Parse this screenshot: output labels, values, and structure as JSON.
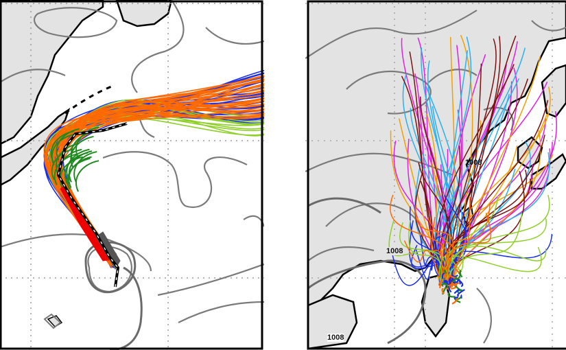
{
  "figure": {
    "panels": [
      {
        "id": "left",
        "contour_labels": []
      },
      {
        "id": "right",
        "contour_labels": [
          "1008",
          "1008",
          "1008"
        ]
      }
    ]
  },
  "colors": {
    "land_fill": "#e3e3e3",
    "ocean_fill": "#ffffff",
    "coastline": "#000000",
    "isobar": "#7a7a7a",
    "isobar_thick": "#6a6a6a",
    "gridline": "#9a9a9a",
    "track_blue": "#1a2ee8",
    "track_orange": "#ff6a00",
    "track_green": "#1f8a1f",
    "track_lightgreen": "#8fcf2a",
    "track_red": "#ee0000",
    "track_dark_gray": "#555555",
    "best_track": "#000000",
    "track_magenta": "#e020e0",
    "track_gold": "#f0a000",
    "track_skyblue": "#28b0f0",
    "track_maroon": "#7a1010"
  },
  "icons": [
    "typhoon-track-bundle",
    "best-track-line"
  ]
}
